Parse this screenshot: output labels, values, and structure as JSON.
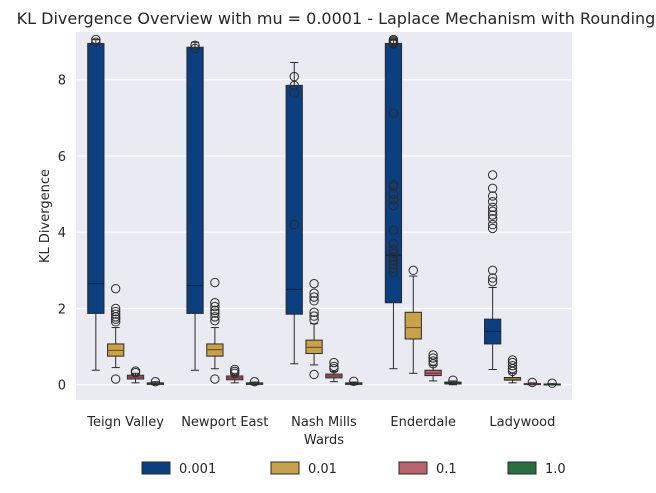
{
  "chart_data": {
    "type": "box",
    "title": "KL Divergence Overview with mu = 0.0001 - Laplace Mechanism with Rounding",
    "xlabel": "Wards",
    "ylabel": "KL Divergence",
    "ylim": [
      -0.4,
      9.25
    ],
    "yticks": [
      0,
      2,
      4,
      6,
      8
    ],
    "grid": true,
    "legend_position": "bottom-center",
    "categories": [
      "Teign Valley",
      "Newport East",
      "Nash Mills",
      "Enderdale",
      "Ladywood"
    ],
    "series": [
      {
        "name": "0.001",
        "color": "#0b3f7f",
        "boxes": [
          {
            "whislo": 0.38,
            "q1": 1.87,
            "med": 2.65,
            "q3": 8.95,
            "whishi": 9.05,
            "fliers": [
              8.98,
              9.05
            ]
          },
          {
            "whislo": 0.38,
            "q1": 1.87,
            "med": 2.6,
            "q3": 8.85,
            "whishi": 8.98,
            "fliers": [
              8.82,
              8.9
            ]
          },
          {
            "whislo": 0.55,
            "q1": 1.85,
            "med": 2.5,
            "q3": 7.85,
            "whishi": 8.45,
            "fliers": [
              4.2,
              7.65,
              7.85,
              8.08
            ]
          },
          {
            "whislo": 0.42,
            "q1": 2.15,
            "med": 3.4,
            "q3": 8.95,
            "whishi": 9.05,
            "fliers": [
              2.95,
              3.05,
              3.15,
              3.25,
              3.35,
              3.45,
              3.55,
              3.7,
              4.05,
              4.7,
              4.85,
              5.0,
              5.2,
              5.25,
              7.12,
              8.93,
              8.96,
              8.99,
              9.02,
              9.05
            ]
          },
          {
            "whislo": 0.4,
            "q1": 1.07,
            "med": 1.4,
            "q3": 1.72,
            "whishi": 2.55,
            "fliers": [
              2.7,
              2.8,
              3.0,
              4.1,
              4.2,
              4.35,
              4.45,
              4.55,
              4.65,
              4.8,
              4.95,
              5.15,
              5.5
            ]
          }
        ]
      },
      {
        "name": "0.01",
        "color": "#c8a14a",
        "boxes": [
          {
            "whislo": 0.45,
            "q1": 0.75,
            "med": 0.9,
            "q3": 1.07,
            "whishi": 1.5,
            "fliers": [
              0.15,
              1.65,
              1.72,
              1.78,
              1.85,
              1.92,
              2.0,
              2.52
            ]
          },
          {
            "whislo": 0.42,
            "q1": 0.75,
            "med": 0.92,
            "q3": 1.07,
            "whishi": 1.5,
            "fliers": [
              0.15,
              1.68,
              1.78,
              1.88,
              1.95,
              2.05,
              2.15,
              2.68
            ]
          },
          {
            "whislo": 0.52,
            "q1": 0.82,
            "med": 0.98,
            "q3": 1.17,
            "whishi": 1.6,
            "fliers": [
              0.27,
              1.7,
              1.8,
              1.9,
              2.2,
              2.3,
              2.4,
              2.65
            ]
          },
          {
            "whislo": 0.3,
            "q1": 1.2,
            "med": 1.5,
            "q3": 1.9,
            "whishi": 2.85,
            "fliers": [
              3.0
            ]
          },
          {
            "whislo": 0.05,
            "q1": 0.12,
            "med": 0.15,
            "q3": 0.19,
            "whishi": 0.3,
            "fliers": [
              0.35,
              0.42,
              0.5,
              0.58,
              0.65
            ]
          }
        ]
      },
      {
        "name": "0.1",
        "color": "#b9636e",
        "boxes": [
          {
            "whislo": 0.05,
            "q1": 0.15,
            "med": 0.2,
            "q3": 0.25,
            "whishi": 0.3,
            "fliers": [
              0.32,
              0.36
            ]
          },
          {
            "whislo": 0.05,
            "q1": 0.13,
            "med": 0.18,
            "q3": 0.23,
            "whishi": 0.28,
            "fliers": [
              0.3,
              0.35,
              0.4
            ]
          },
          {
            "whislo": 0.08,
            "q1": 0.18,
            "med": 0.23,
            "q3": 0.28,
            "whishi": 0.35,
            "fliers": [
              0.42,
              0.48,
              0.58
            ]
          },
          {
            "whislo": 0.1,
            "q1": 0.24,
            "med": 0.3,
            "q3": 0.38,
            "whishi": 0.5,
            "fliers": [
              0.55,
              0.62,
              0.7,
              0.78
            ]
          },
          {
            "whislo": 0.0,
            "q1": 0.01,
            "med": 0.02,
            "q3": 0.03,
            "whishi": 0.05,
            "fliers": [
              0.06
            ]
          }
        ]
      },
      {
        "name": "1.0",
        "color": "#2a6e3f",
        "boxes": [
          {
            "whislo": 0.0,
            "q1": 0.01,
            "med": 0.02,
            "q3": 0.05,
            "whishi": 0.08,
            "fliers": [
              0.08
            ]
          },
          {
            "whislo": 0.0,
            "q1": 0.01,
            "med": 0.02,
            "q3": 0.05,
            "whishi": 0.07,
            "fliers": [
              0.08
            ]
          },
          {
            "whislo": 0.0,
            "q1": 0.01,
            "med": 0.02,
            "q3": 0.05,
            "whishi": 0.07,
            "fliers": [
              0.09
            ]
          },
          {
            "whislo": 0.0,
            "q1": 0.02,
            "med": 0.04,
            "q3": 0.07,
            "whishi": 0.1,
            "fliers": [
              0.12
            ]
          },
          {
            "whislo": 0.0,
            "q1": 0.0,
            "med": 0.01,
            "q3": 0.02,
            "whishi": 0.03,
            "fliers": [
              0.04
            ]
          }
        ]
      }
    ]
  }
}
